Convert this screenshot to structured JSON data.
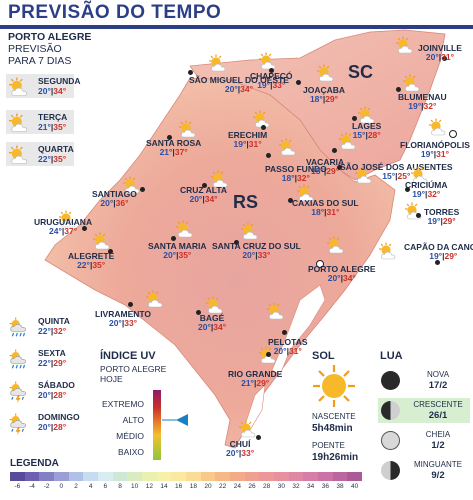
{
  "title": "PREVISÃO DO TEMPO",
  "left_header": {
    "city": "PORTO ALEGRE",
    "line2": "PREVISÃO",
    "line3": "PARA 7 DIAS"
  },
  "week": [
    {
      "day": "SEGUNDA",
      "min": "20°",
      "max": "34°",
      "icon": "sun-cloud-icon"
    },
    {
      "day": "TERÇA",
      "min": "21°",
      "max": "35°",
      "icon": "sun-cloud-icon"
    },
    {
      "day": "QUARTA",
      "min": "22°",
      "max": "35°",
      "icon": "sun-cloud-icon"
    },
    {
      "day": "QUINTA",
      "min": "22°",
      "max": "32°",
      "icon": "rain-icon"
    },
    {
      "day": "SEXTA",
      "min": "22°",
      "max": "29°",
      "icon": "rain-icon"
    },
    {
      "day": "SÁBADO",
      "min": "20°",
      "max": "28°",
      "icon": "storm-icon"
    },
    {
      "day": "DOMINGO",
      "min": "20°",
      "max": "28°",
      "icon": "storm-icon"
    }
  ],
  "states": {
    "sc": "SC",
    "rs": "RS"
  },
  "cities": [
    {
      "name": "JOINVILLE",
      "min": "20°",
      "max": "31°"
    },
    {
      "name": "CHAPECÓ",
      "min": "19°",
      "max": "33°"
    },
    {
      "name": "SÃO MIGUEL DO OESTE",
      "min": "20°",
      "max": "34°"
    },
    {
      "name": "JOAÇABA",
      "min": "18°",
      "max": "29°"
    },
    {
      "name": "BLUMENAU",
      "min": "19°",
      "max": "32°"
    },
    {
      "name": "LAGES",
      "min": "15°",
      "max": "28°"
    },
    {
      "name": "FLORIANÓPOLIS",
      "min": "19°",
      "max": "31°"
    },
    {
      "name": "SANTA ROSA",
      "min": "21°",
      "max": "37°"
    },
    {
      "name": "ERECHIM",
      "min": "19°",
      "max": "31°"
    },
    {
      "name": "PASSO FUNDO",
      "min": "18°",
      "max": "32°"
    },
    {
      "name": "VACARIA",
      "min": "15°",
      "max": "29°"
    },
    {
      "name": "SÃO JOSÉ DOS AUSENTES",
      "min": "15°",
      "max": "25°"
    },
    {
      "name": "CRICIÚMA",
      "min": "19°",
      "max": "32°"
    },
    {
      "name": "SANTIAGO",
      "min": "20°",
      "max": "36°"
    },
    {
      "name": "CRUZ ALTA",
      "min": "20°",
      "max": "34°"
    },
    {
      "name": "TORRES",
      "min": "19°",
      "max": "29°"
    },
    {
      "name": "URUGUAIANA",
      "min": "24°",
      "max": "37°"
    },
    {
      "name": "CAXIAS DO SUL",
      "min": "18°",
      "max": "31°"
    },
    {
      "name": "CAPÃO DA CANOA",
      "min": "19°",
      "max": "29°"
    },
    {
      "name": "ALEGRETE",
      "min": "22°",
      "max": "35°"
    },
    {
      "name": "SANTA MARIA",
      "min": "20°",
      "max": "35°"
    },
    {
      "name": "SANTA CRUZ DO SUL",
      "min": "20°",
      "max": "33°"
    },
    {
      "name": "PORTO ALEGRE",
      "min": "20°",
      "max": "34°"
    },
    {
      "name": "LIVRAMENTO",
      "min": "20°",
      "max": "33°"
    },
    {
      "name": "BAGÉ",
      "min": "20°",
      "max": "34°"
    },
    {
      "name": "PELOTAS",
      "min": "20°",
      "max": "31°"
    },
    {
      "name": "RIO GRANDE",
      "min": "21°",
      "max": "29°"
    },
    {
      "name": "CHUÍ",
      "min": "20°",
      "max": "33°"
    }
  ],
  "uv": {
    "title": "ÍNDICE UV",
    "sub1": "PORTO ALEGRE",
    "sub2": "HOJE",
    "levels": [
      "EXTREMO",
      "ALTO",
      "MÉDIO",
      "BAIXO"
    ],
    "current": "ALTO",
    "pointer_color": "#1a7fc4"
  },
  "sol": {
    "title": "SOL",
    "sunrise_label": "NASCENTE",
    "sunrise": "5h48min",
    "sunset_label": "POENTE",
    "sunset": "19h26min"
  },
  "lua": {
    "title": "LUA",
    "phases": [
      {
        "name": "NOVA",
        "date": "17/2",
        "highlight": false
      },
      {
        "name": "CRESCENTE",
        "date": "26/1",
        "highlight": true
      },
      {
        "name": "CHEIA",
        "date": "1/2",
        "highlight": false
      },
      {
        "name": "MINGUANTE",
        "date": "9/2",
        "highlight": false
      }
    ]
  },
  "legend": {
    "title": "LEGENDA",
    "ticks": [
      "-6",
      "-4",
      "-2",
      "0",
      "2",
      "4",
      "6",
      "8",
      "10",
      "12",
      "14",
      "16",
      "18",
      "20",
      "22",
      "24",
      "26",
      "28",
      "30",
      "32",
      "34",
      "36",
      "38",
      "40"
    ],
    "colors": [
      "#5a4a9a",
      "#6e62b0",
      "#8480c4",
      "#9aa0d6",
      "#b0c0e6",
      "#c6dcf0",
      "#d8ecf2",
      "#cfe8d6",
      "#d9ecc0",
      "#eaf0b2",
      "#f6f0a8",
      "#faeaa0",
      "#fbdc96",
      "#f9c98c",
      "#f6b884",
      "#f3aa86",
      "#f0a08e",
      "#ec9898",
      "#e690a0",
      "#df88a6",
      "#d67ea8",
      "#cb72a6",
      "#bc66a0",
      "#ab5a98"
    ],
    "color_labels": [
      "-6",
      "-4",
      "-2",
      "0",
      "2",
      "4",
      "6",
      "8",
      "10",
      "12",
      "14",
      "16",
      "18",
      "20",
      "22",
      "24",
      "26",
      "28",
      "30",
      "32",
      "34",
      "36",
      "38",
      "40"
    ]
  },
  "colors": {
    "accent": "#2c3f86",
    "min": "#2c4fa3",
    "max": "#c8312a",
    "land": "#f0b8a8"
  }
}
